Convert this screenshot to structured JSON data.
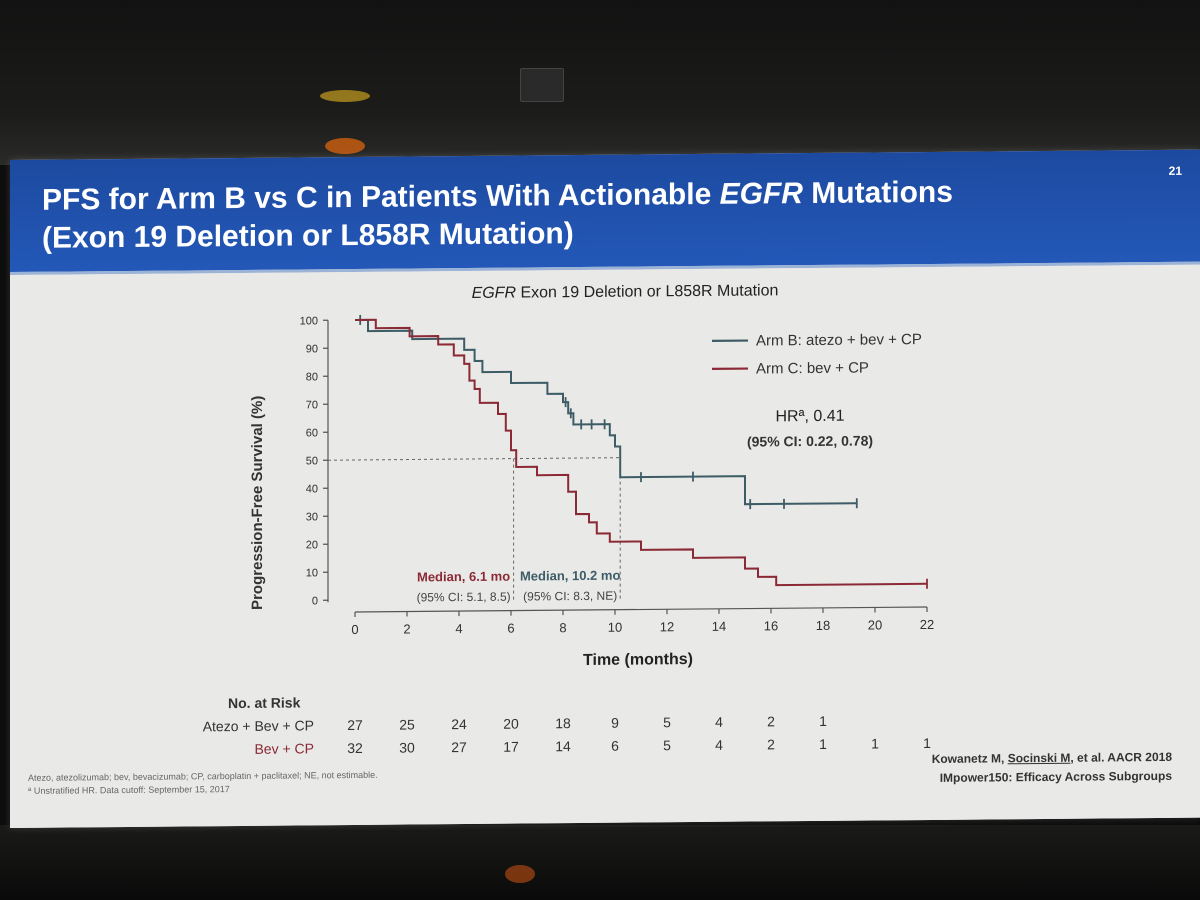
{
  "slide": {
    "page_number": "21",
    "title_part1": "PFS for Arm B vs C in Patients With Actionable ",
    "title_italic": "EGFR",
    "title_part2": " Mutations",
    "title_line2": "(Exon 19 Deletion or L858R Mutation)"
  },
  "colors": {
    "header": "#2358b8",
    "arm_b": "#3d5c66",
    "arm_c": "#8b2a36"
  },
  "chart_data": {
    "type": "line",
    "title_italic": "EGFR",
    "title_rest": " Exon 19 Deletion or L858R Mutation",
    "xlabel": "Time (months)",
    "ylabel": "Progression-Free Survival (%)",
    "xlim": [
      0,
      22
    ],
    "ylim": [
      0,
      100
    ],
    "xticks": [
      "0",
      "2",
      "4",
      "6",
      "8",
      "10",
      "12",
      "14",
      "16",
      "18",
      "20",
      "22"
    ],
    "yticks": [
      "0",
      "10",
      "20",
      "30",
      "40",
      "50",
      "60",
      "70",
      "80",
      "90",
      "100"
    ],
    "series": [
      {
        "name": "Arm B: atezo + bev + CP",
        "color": "#3d5c66",
        "steps": [
          [
            0,
            100
          ],
          [
            0.5,
            100
          ],
          [
            0.5,
            96
          ],
          [
            2.2,
            96
          ],
          [
            2.2,
            93
          ],
          [
            4.2,
            93
          ],
          [
            4.2,
            89
          ],
          [
            4.6,
            89
          ],
          [
            4.6,
            85
          ],
          [
            4.9,
            85
          ],
          [
            4.9,
            81
          ],
          [
            6.0,
            81
          ],
          [
            6.0,
            77
          ],
          [
            7.4,
            77
          ],
          [
            7.4,
            73
          ],
          [
            8.0,
            73
          ],
          [
            8.0,
            70
          ],
          [
            8.2,
            70
          ],
          [
            8.2,
            66
          ],
          [
            8.4,
            66
          ],
          [
            8.4,
            62
          ],
          [
            9.8,
            62
          ],
          [
            9.8,
            58
          ],
          [
            10.0,
            58
          ],
          [
            10.0,
            54
          ],
          [
            10.2,
            54
          ],
          [
            10.2,
            43
          ],
          [
            15.0,
            43
          ],
          [
            15.0,
            33
          ],
          [
            19.3,
            33
          ]
        ],
        "censors": [
          [
            0.2,
            100
          ],
          [
            8.1,
            70
          ],
          [
            8.3,
            66
          ],
          [
            8.7,
            62
          ],
          [
            9.1,
            62
          ],
          [
            9.6,
            62
          ],
          [
            11.0,
            43
          ],
          [
            13.0,
            43
          ],
          [
            15.2,
            33
          ],
          [
            16.5,
            33
          ],
          [
            19.3,
            33
          ]
        ]
      },
      {
        "name": "Arm C: bev + CP",
        "color": "#8b2a36",
        "steps": [
          [
            0,
            100
          ],
          [
            0.8,
            100
          ],
          [
            0.8,
            97
          ],
          [
            2.1,
            97
          ],
          [
            2.1,
            94
          ],
          [
            3.2,
            94
          ],
          [
            3.2,
            91
          ],
          [
            3.8,
            91
          ],
          [
            3.8,
            87
          ],
          [
            4.2,
            87
          ],
          [
            4.2,
            84
          ],
          [
            4.4,
            84
          ],
          [
            4.4,
            78
          ],
          [
            4.6,
            78
          ],
          [
            4.6,
            75
          ],
          [
            4.8,
            75
          ],
          [
            4.8,
            70
          ],
          [
            5.5,
            70
          ],
          [
            5.5,
            66
          ],
          [
            5.8,
            66
          ],
          [
            5.8,
            60
          ],
          [
            6.0,
            60
          ],
          [
            6.0,
            53
          ],
          [
            6.2,
            53
          ],
          [
            6.2,
            47
          ],
          [
            7.0,
            47
          ],
          [
            7.0,
            44
          ],
          [
            8.2,
            44
          ],
          [
            8.2,
            38
          ],
          [
            8.5,
            38
          ],
          [
            8.5,
            30
          ],
          [
            9.0,
            30
          ],
          [
            9.0,
            27
          ],
          [
            9.3,
            27
          ],
          [
            9.3,
            23
          ],
          [
            9.8,
            23
          ],
          [
            9.8,
            20
          ],
          [
            11.0,
            20
          ],
          [
            11.0,
            17
          ],
          [
            13.0,
            17
          ],
          [
            13.0,
            14
          ],
          [
            15.0,
            14
          ],
          [
            15.0,
            10
          ],
          [
            15.5,
            10
          ],
          [
            15.5,
            7
          ],
          [
            16.2,
            7
          ],
          [
            16.2,
            4
          ],
          [
            22,
            4
          ]
        ],
        "censors": [
          [
            22,
            4
          ]
        ]
      }
    ],
    "hazard_ratio": "HRª, 0.41",
    "hazard_ci": "(95% CI: 0.22, 0.78)",
    "medians": [
      {
        "label": "Median, 6.1 mo",
        "ci": "(95% CI: 5.1, 8.5)",
        "x": 6.1,
        "series": "Arm C: bev + CP"
      },
      {
        "label": "Median, 10.2 mo",
        "ci": "(95% CI: 8.3, NE)",
        "x": 10.2,
        "series": "Arm B: atezo + bev + CP"
      }
    ],
    "grid": false,
    "legend_position": "top-right",
    "risk_table": {
      "title": "No. at Risk",
      "rows": [
        {
          "label": "Atezo + Bev + CP",
          "values": [
            "27",
            "25",
            "24",
            "20",
            "18",
            "9",
            "5",
            "4",
            "2",
            "1",
            "",
            ""
          ]
        },
        {
          "label": "Bev + CP",
          "values": [
            "32",
            "30",
            "27",
            "17",
            "14",
            "6",
            "5",
            "4",
            "2",
            "1",
            "1",
            "1"
          ]
        }
      ]
    }
  },
  "footnotes": {
    "abbrev": "Atezo, atezolizumab; bev, bevacizumab; CP, carboplatin + paclitaxel; NE, not estimable.",
    "note_a": "ª Unstratified HR. Data cutoff: September 15, 2017",
    "citation_line1_pre": "Kowanetz M, ",
    "citation_line1_u": "Socinski M",
    "citation_line1_post": ", et al. AACR 2018",
    "citation_line2": "IMpower150: Efficacy Across Subgroups"
  }
}
